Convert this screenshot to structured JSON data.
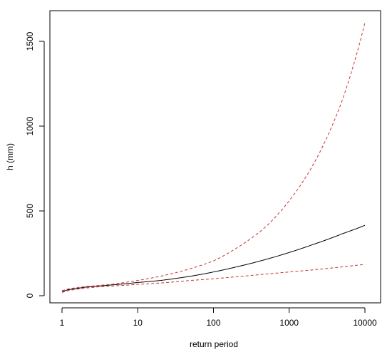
{
  "chart_data": {
    "type": "line",
    "title": "",
    "xlabel": "return period",
    "ylabel": "h (mm)",
    "xscale": "log",
    "xlim": [
      1,
      10000
    ],
    "ylim": [
      0,
      1600
    ],
    "x_ticks": [
      1,
      10,
      100,
      1000,
      10000
    ],
    "y_ticks": [
      0,
      500,
      1000,
      1500
    ],
    "grid": false,
    "legend": "none",
    "series": [
      {
        "role": "estimate",
        "color": "#000000",
        "dash": "solid",
        "x": [
          1,
          1.2,
          1.5,
          2,
          3,
          5,
          10,
          20,
          50,
          100,
          200,
          500,
          1000,
          2000,
          5000,
          10000
        ],
        "y": [
          25,
          35,
          42,
          50,
          57,
          65,
          78,
          90,
          115,
          140,
          170,
          215,
          255,
          300,
          365,
          415
        ]
      },
      {
        "role": "upper",
        "color": "#cc3333",
        "dash": "dashed",
        "x": [
          1,
          1.2,
          1.5,
          2,
          3,
          5,
          10,
          20,
          50,
          100,
          200,
          500,
          1000,
          2000,
          5000,
          10000
        ],
        "y": [
          30,
          40,
          47,
          54,
          60,
          70,
          90,
          115,
          160,
          205,
          280,
          410,
          560,
          760,
          1150,
          1610
        ]
      },
      {
        "role": "lower",
        "color": "#cc3333",
        "dash": "dashed",
        "x": [
          1,
          1.2,
          1.5,
          2,
          3,
          5,
          10,
          20,
          50,
          100,
          200,
          500,
          1000,
          2000,
          5000,
          10000
        ],
        "y": [
          20,
          30,
          37,
          45,
          52,
          58,
          67,
          75,
          90,
          100,
          112,
          128,
          140,
          152,
          170,
          185
        ]
      }
    ]
  }
}
